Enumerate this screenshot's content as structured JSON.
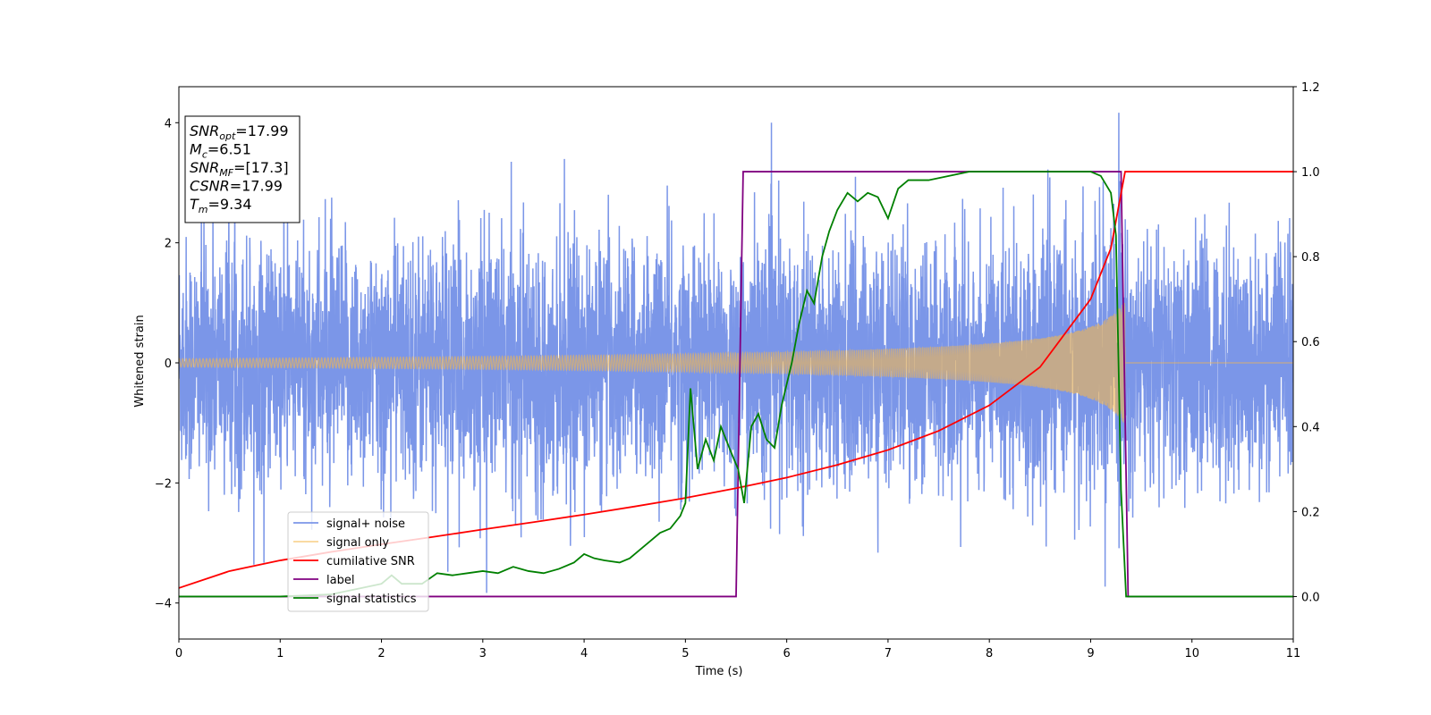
{
  "chart_data": {
    "type": "line",
    "xlabel": "Time (s)",
    "ylabel": "Whitened strain",
    "xlim": [
      0,
      11
    ],
    "ylim": [
      -4.6,
      4.6
    ],
    "y2lim": [
      -0.1,
      1.2
    ],
    "xticks": [
      0,
      1,
      2,
      3,
      4,
      5,
      6,
      7,
      8,
      9,
      10,
      11
    ],
    "yticks": [
      -4,
      -2,
      0,
      2,
      4
    ],
    "y2ticks": [
      "0.0",
      "0.2",
      "0.4",
      "0.6",
      "0.8",
      "1.0",
      "1.2"
    ],
    "grid": false,
    "legend_position": "lower-left",
    "info_box": {
      "lines": [
        {
          "base": "SNR",
          "sub": "opt",
          "value": "=17.99"
        },
        {
          "base": "M",
          "sub": "c",
          "value": "=6.51"
        },
        {
          "base": "SNR",
          "sub": "MF",
          "value": "=[17.3]"
        },
        {
          "base": "CSNR",
          "sub": "",
          "value": "=17.99"
        },
        {
          "base": "T",
          "sub": "m",
          "value": "=9.34"
        }
      ]
    },
    "series": [
      {
        "name": "signal+ noise",
        "color": "#7b96e8",
        "axis": "left",
        "description_noise_std": 1.0,
        "t_range": [
          0,
          11
        ]
      },
      {
        "name": "signal only",
        "color": "#f5b84d",
        "axis": "left",
        "merge_time": 9.34,
        "amplitude_start": 0.07,
        "amplitude_peak": 1.05
      },
      {
        "name": "cumilative SNR",
        "color": "#ff0000",
        "axis": "right",
        "x": [
          0,
          0.5,
          1,
          1.5,
          2,
          2.5,
          3,
          3.5,
          4,
          4.5,
          5,
          5.5,
          6,
          6.5,
          7,
          7.5,
          8,
          8.5,
          9,
          9.2,
          9.34,
          11
        ],
        "y": [
          0.02,
          0.06,
          0.085,
          0.105,
          0.123,
          0.14,
          0.158,
          0.175,
          0.193,
          0.212,
          0.232,
          0.255,
          0.28,
          0.31,
          0.345,
          0.39,
          0.45,
          0.54,
          0.7,
          0.82,
          1.0,
          1.0
        ]
      },
      {
        "name": "label",
        "color": "#800080",
        "axis": "right",
        "x": [
          0,
          5.5,
          5.57,
          9.3,
          9.37,
          11
        ],
        "y": [
          0,
          0,
          1,
          1,
          0,
          0
        ]
      },
      {
        "name": "signal statistics",
        "color": "#008000",
        "axis": "right",
        "x": [
          0,
          0.5,
          1,
          1.5,
          1.8,
          2.0,
          2.1,
          2.2,
          2.4,
          2.55,
          2.7,
          2.85,
          3.0,
          3.15,
          3.3,
          3.45,
          3.6,
          3.75,
          3.9,
          4.0,
          4.1,
          4.2,
          4.35,
          4.45,
          4.55,
          4.65,
          4.75,
          4.85,
          4.95,
          5.0,
          5.05,
          5.12,
          5.2,
          5.28,
          5.35,
          5.45,
          5.52,
          5.58,
          5.65,
          5.72,
          5.8,
          5.88,
          5.95,
          6.05,
          6.12,
          6.2,
          6.27,
          6.35,
          6.42,
          6.5,
          6.6,
          6.7,
          6.8,
          6.9,
          7.0,
          7.1,
          7.2,
          7.4,
          7.6,
          7.8,
          8.0,
          8.5,
          9.0,
          9.1,
          9.2,
          9.25,
          9.3,
          9.35,
          11
        ],
        "y": [
          0,
          0,
          0,
          0.005,
          0.02,
          0.03,
          0.05,
          0.03,
          0.03,
          0.055,
          0.05,
          0.055,
          0.06,
          0.055,
          0.07,
          0.06,
          0.055,
          0.065,
          0.08,
          0.1,
          0.09,
          0.085,
          0.08,
          0.09,
          0.11,
          0.13,
          0.15,
          0.16,
          0.19,
          0.22,
          0.49,
          0.3,
          0.37,
          0.32,
          0.4,
          0.34,
          0.3,
          0.22,
          0.4,
          0.43,
          0.37,
          0.35,
          0.45,
          0.55,
          0.64,
          0.72,
          0.69,
          0.8,
          0.86,
          0.91,
          0.95,
          0.93,
          0.95,
          0.94,
          0.89,
          0.96,
          0.98,
          0.98,
          0.99,
          1.0,
          1.0,
          1.0,
          1.0,
          0.99,
          0.95,
          0.85,
          0.25,
          0.0,
          0.0
        ]
      }
    ]
  }
}
